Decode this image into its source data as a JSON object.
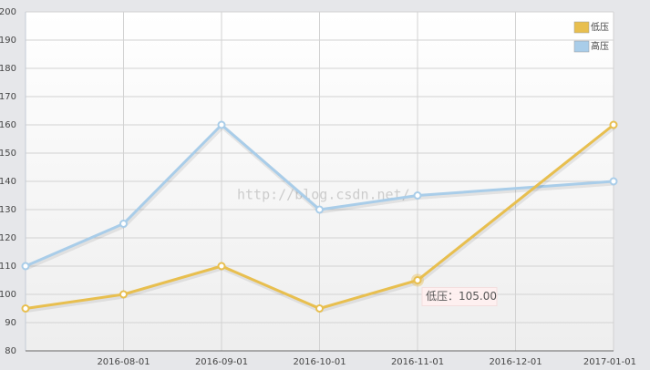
{
  "chart_data": {
    "type": "line",
    "xticks": [
      "2016-08-01",
      "2016-09-01",
      "2016-10-01",
      "2016-11-01",
      "2016-12-01",
      "2017-01-01"
    ],
    "x": [
      null,
      "2016-08-01",
      "2016-09-01",
      "2016-10-01",
      "2016-11-01",
      "2017-01-01"
    ],
    "series": [
      {
        "name": "低压",
        "color": "#e8bf4f",
        "values": [
          95,
          100,
          110,
          95,
          105,
          160
        ]
      },
      {
        "name": "高压",
        "color": "#a9cde9",
        "values": [
          110,
          125,
          160,
          130,
          135,
          140
        ]
      }
    ],
    "ylim": [
      80,
      200
    ],
    "yticks": [
      80,
      90,
      100,
      110,
      120,
      130,
      140,
      150,
      160,
      170,
      180,
      190,
      200
    ],
    "grid": true,
    "legend": "top-right",
    "tooltip": "低压：105.00",
    "watermark": "http://blog.csdn.net/"
  }
}
